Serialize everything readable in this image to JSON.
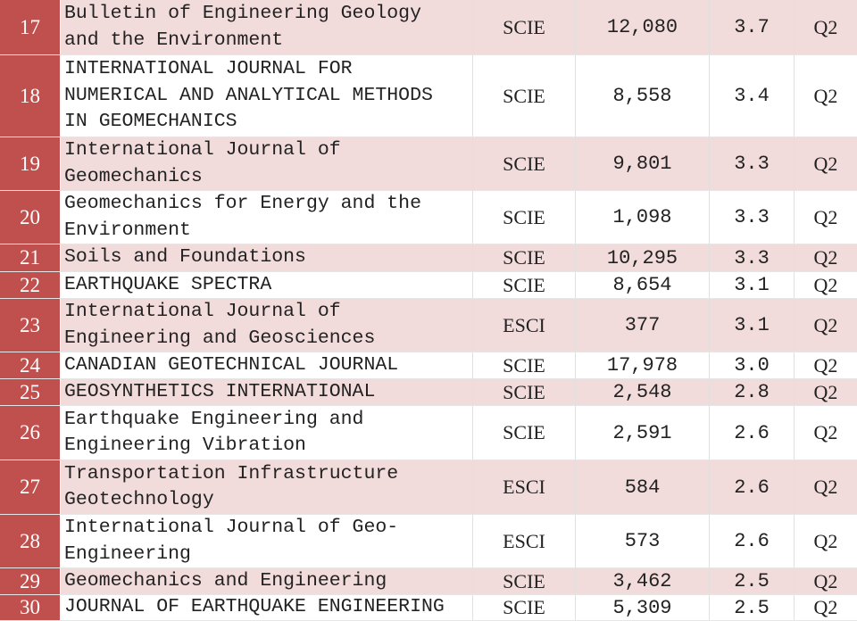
{
  "table": {
    "rows": [
      {
        "rank": "17",
        "journal": [
          "Bulletin of Engineering Geology",
          "and the Environment"
        ],
        "index": "SCIE",
        "cites": "12,080",
        "if": "3.7",
        "quartile": "Q2"
      },
      {
        "rank": "18",
        "journal": [
          "INTERNATIONAL JOURNAL FOR",
          "NUMERICAL AND ANALYTICAL METHODS",
          "IN GEOMECHANICS"
        ],
        "index": "SCIE",
        "cites": "8,558",
        "if": "3.4",
        "quartile": "Q2"
      },
      {
        "rank": "19",
        "journal": [
          "International Journal of",
          "Geomechanics"
        ],
        "index": "SCIE",
        "cites": "9,801",
        "if": "3.3",
        "quartile": "Q2"
      },
      {
        "rank": "20",
        "journal": [
          "Geomechanics for Energy and the",
          "Environment"
        ],
        "index": "SCIE",
        "cites": "1,098",
        "if": "3.3",
        "quartile": "Q2"
      },
      {
        "rank": "21",
        "journal": [
          "Soils and Foundations"
        ],
        "index": "SCIE",
        "cites": "10,295",
        "if": "3.3",
        "quartile": "Q2"
      },
      {
        "rank": "22",
        "journal": [
          "EARTHQUAKE SPECTRA"
        ],
        "index": "SCIE",
        "cites": "8,654",
        "if": "3.1",
        "quartile": "Q2"
      },
      {
        "rank": "23",
        "journal": [
          "International Journal of",
          "Engineering and Geosciences"
        ],
        "index": "ESCI",
        "cites": "377",
        "if": "3.1",
        "quartile": "Q2"
      },
      {
        "rank": "24",
        "journal": [
          "CANADIAN GEOTECHNICAL JOURNAL"
        ],
        "index": "SCIE",
        "cites": "17,978",
        "if": "3.0",
        "quartile": "Q2"
      },
      {
        "rank": "25",
        "journal": [
          "GEOSYNTHETICS INTERNATIONAL"
        ],
        "index": "SCIE",
        "cites": "2,548",
        "if": "2.8",
        "quartile": "Q2"
      },
      {
        "rank": "26",
        "journal": [
          "Earthquake Engineering and",
          "Engineering Vibration"
        ],
        "index": "SCIE",
        "cites": "2,591",
        "if": "2.6",
        "quartile": "Q2"
      },
      {
        "rank": "27",
        "journal": [
          "Transportation Infrastructure",
          "Geotechnology"
        ],
        "index": "ESCI",
        "cites": "584",
        "if": "2.6",
        "quartile": "Q2"
      },
      {
        "rank": "28",
        "journal": [
          "International Journal of Geo-",
          "Engineering"
        ],
        "index": "ESCI",
        "cites": "573",
        "if": "2.6",
        "quartile": "Q2"
      },
      {
        "rank": "29",
        "journal": [
          "Geomechanics and Engineering"
        ],
        "index": "SCIE",
        "cites": "3,462",
        "if": "2.5",
        "quartile": "Q2"
      },
      {
        "rank": "30",
        "journal": [
          "JOURNAL OF EARTHQUAKE ENGINEERING"
        ],
        "index": "SCIE",
        "cites": "5,309",
        "if": "2.5",
        "quartile": "Q2"
      }
    ]
  }
}
